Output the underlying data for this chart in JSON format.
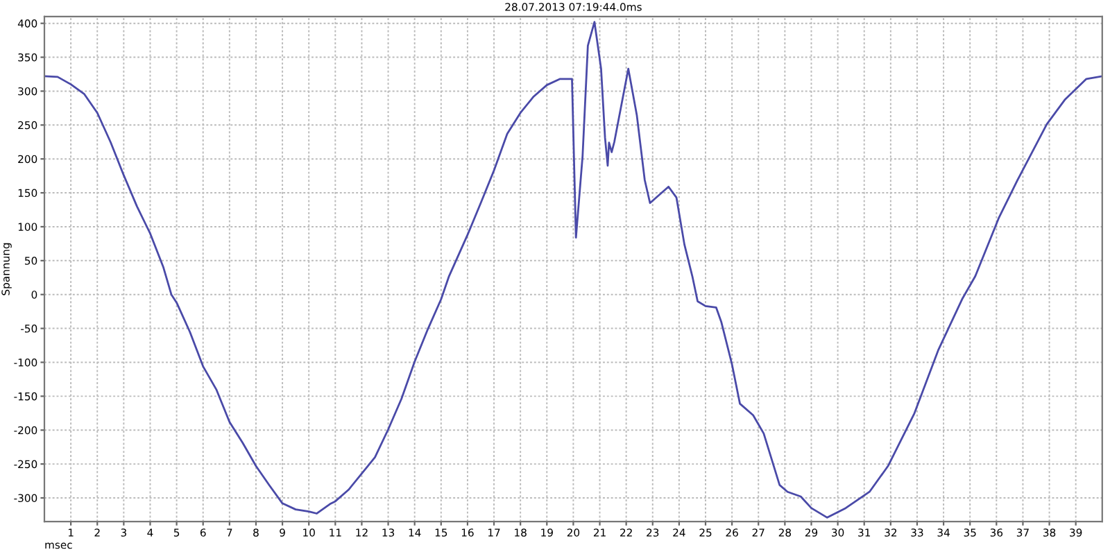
{
  "chart_data": {
    "type": "line",
    "title": "28.07.2013 07:19:44.0ms",
    "xlabel": "msec",
    "ylabel": "Spannung",
    "x": [
      0,
      0.5,
      1,
      1.5,
      2,
      2.5,
      3,
      3.5,
      3.85,
      4,
      4.5,
      4.8,
      5,
      5.5,
      6,
      6.5,
      7,
      7.5,
      8,
      8.5,
      9,
      9.5,
      10,
      10.3,
      10.8,
      11,
      11.5,
      12,
      12.5,
      13,
      13.5,
      14,
      14.5,
      15,
      15.3,
      16,
      16.5,
      17,
      17.5,
      18,
      18.5,
      19,
      19.5,
      19.95,
      20.1,
      20.35,
      20.55,
      20.8,
      21.05,
      21.2,
      21.3,
      21.35,
      21.45,
      21.55,
      22.08,
      22.4,
      22.7,
      22.9,
      23.6,
      23.9,
      24.2,
      24.5,
      24.7,
      25.0,
      25.4,
      25.6,
      26.0,
      26.3,
      26.8,
      27.2,
      27.8,
      28.1,
      28.6,
      29.0,
      29.6,
      30.3,
      31.2,
      31.9,
      32.9,
      33.8,
      34.7,
      35.2,
      36.1,
      36.8,
      37.9,
      38.6,
      39.4,
      40
    ],
    "series": [
      {
        "color": "#4a4aa8",
        "values": [
          322,
          321,
          310,
          296,
          268,
          225,
          176,
          130,
          102,
          90,
          40,
          0,
          -12,
          -55,
          -106,
          -140,
          -188,
          -219,
          -253,
          -281,
          -308,
          -317,
          -320,
          -323,
          -309,
          -305,
          -288,
          -264,
          -240,
          -199,
          -154,
          -99,
          -51,
          -7,
          27,
          88,
          135,
          183,
          237,
          268,
          292,
          309,
          318,
          318,
          84,
          204,
          367,
          402,
          333,
          231,
          190,
          224,
          210,
          225,
          333,
          265,
          169,
          135,
          159,
          143,
          74,
          27,
          -10,
          -17,
          -19,
          -41,
          -103,
          -161,
          -178,
          -205,
          -281,
          -291,
          -298,
          -315,
          -329,
          -315,
          -291,
          -253,
          -175,
          -82,
          -7,
          27,
          114,
          169,
          251,
          288,
          318,
          322
        ]
      }
    ],
    "xlim": [
      0,
      40
    ],
    "xticks": [
      1,
      2,
      3,
      4,
      5,
      6,
      7,
      8,
      9,
      10,
      11,
      12,
      13,
      14,
      15,
      16,
      17,
      18,
      19,
      20,
      21,
      22,
      23,
      24,
      25,
      26,
      27,
      28,
      29,
      30,
      31,
      32,
      33,
      34,
      35,
      36,
      37,
      38,
      39
    ],
    "ylim": [
      -335,
      410
    ],
    "yticks": [
      -300,
      -250,
      -200,
      -150,
      -100,
      -50,
      0,
      50,
      100,
      150,
      200,
      250,
      300,
      350,
      400
    ],
    "grid": true,
    "line_style": "solid",
    "marker": "none"
  }
}
